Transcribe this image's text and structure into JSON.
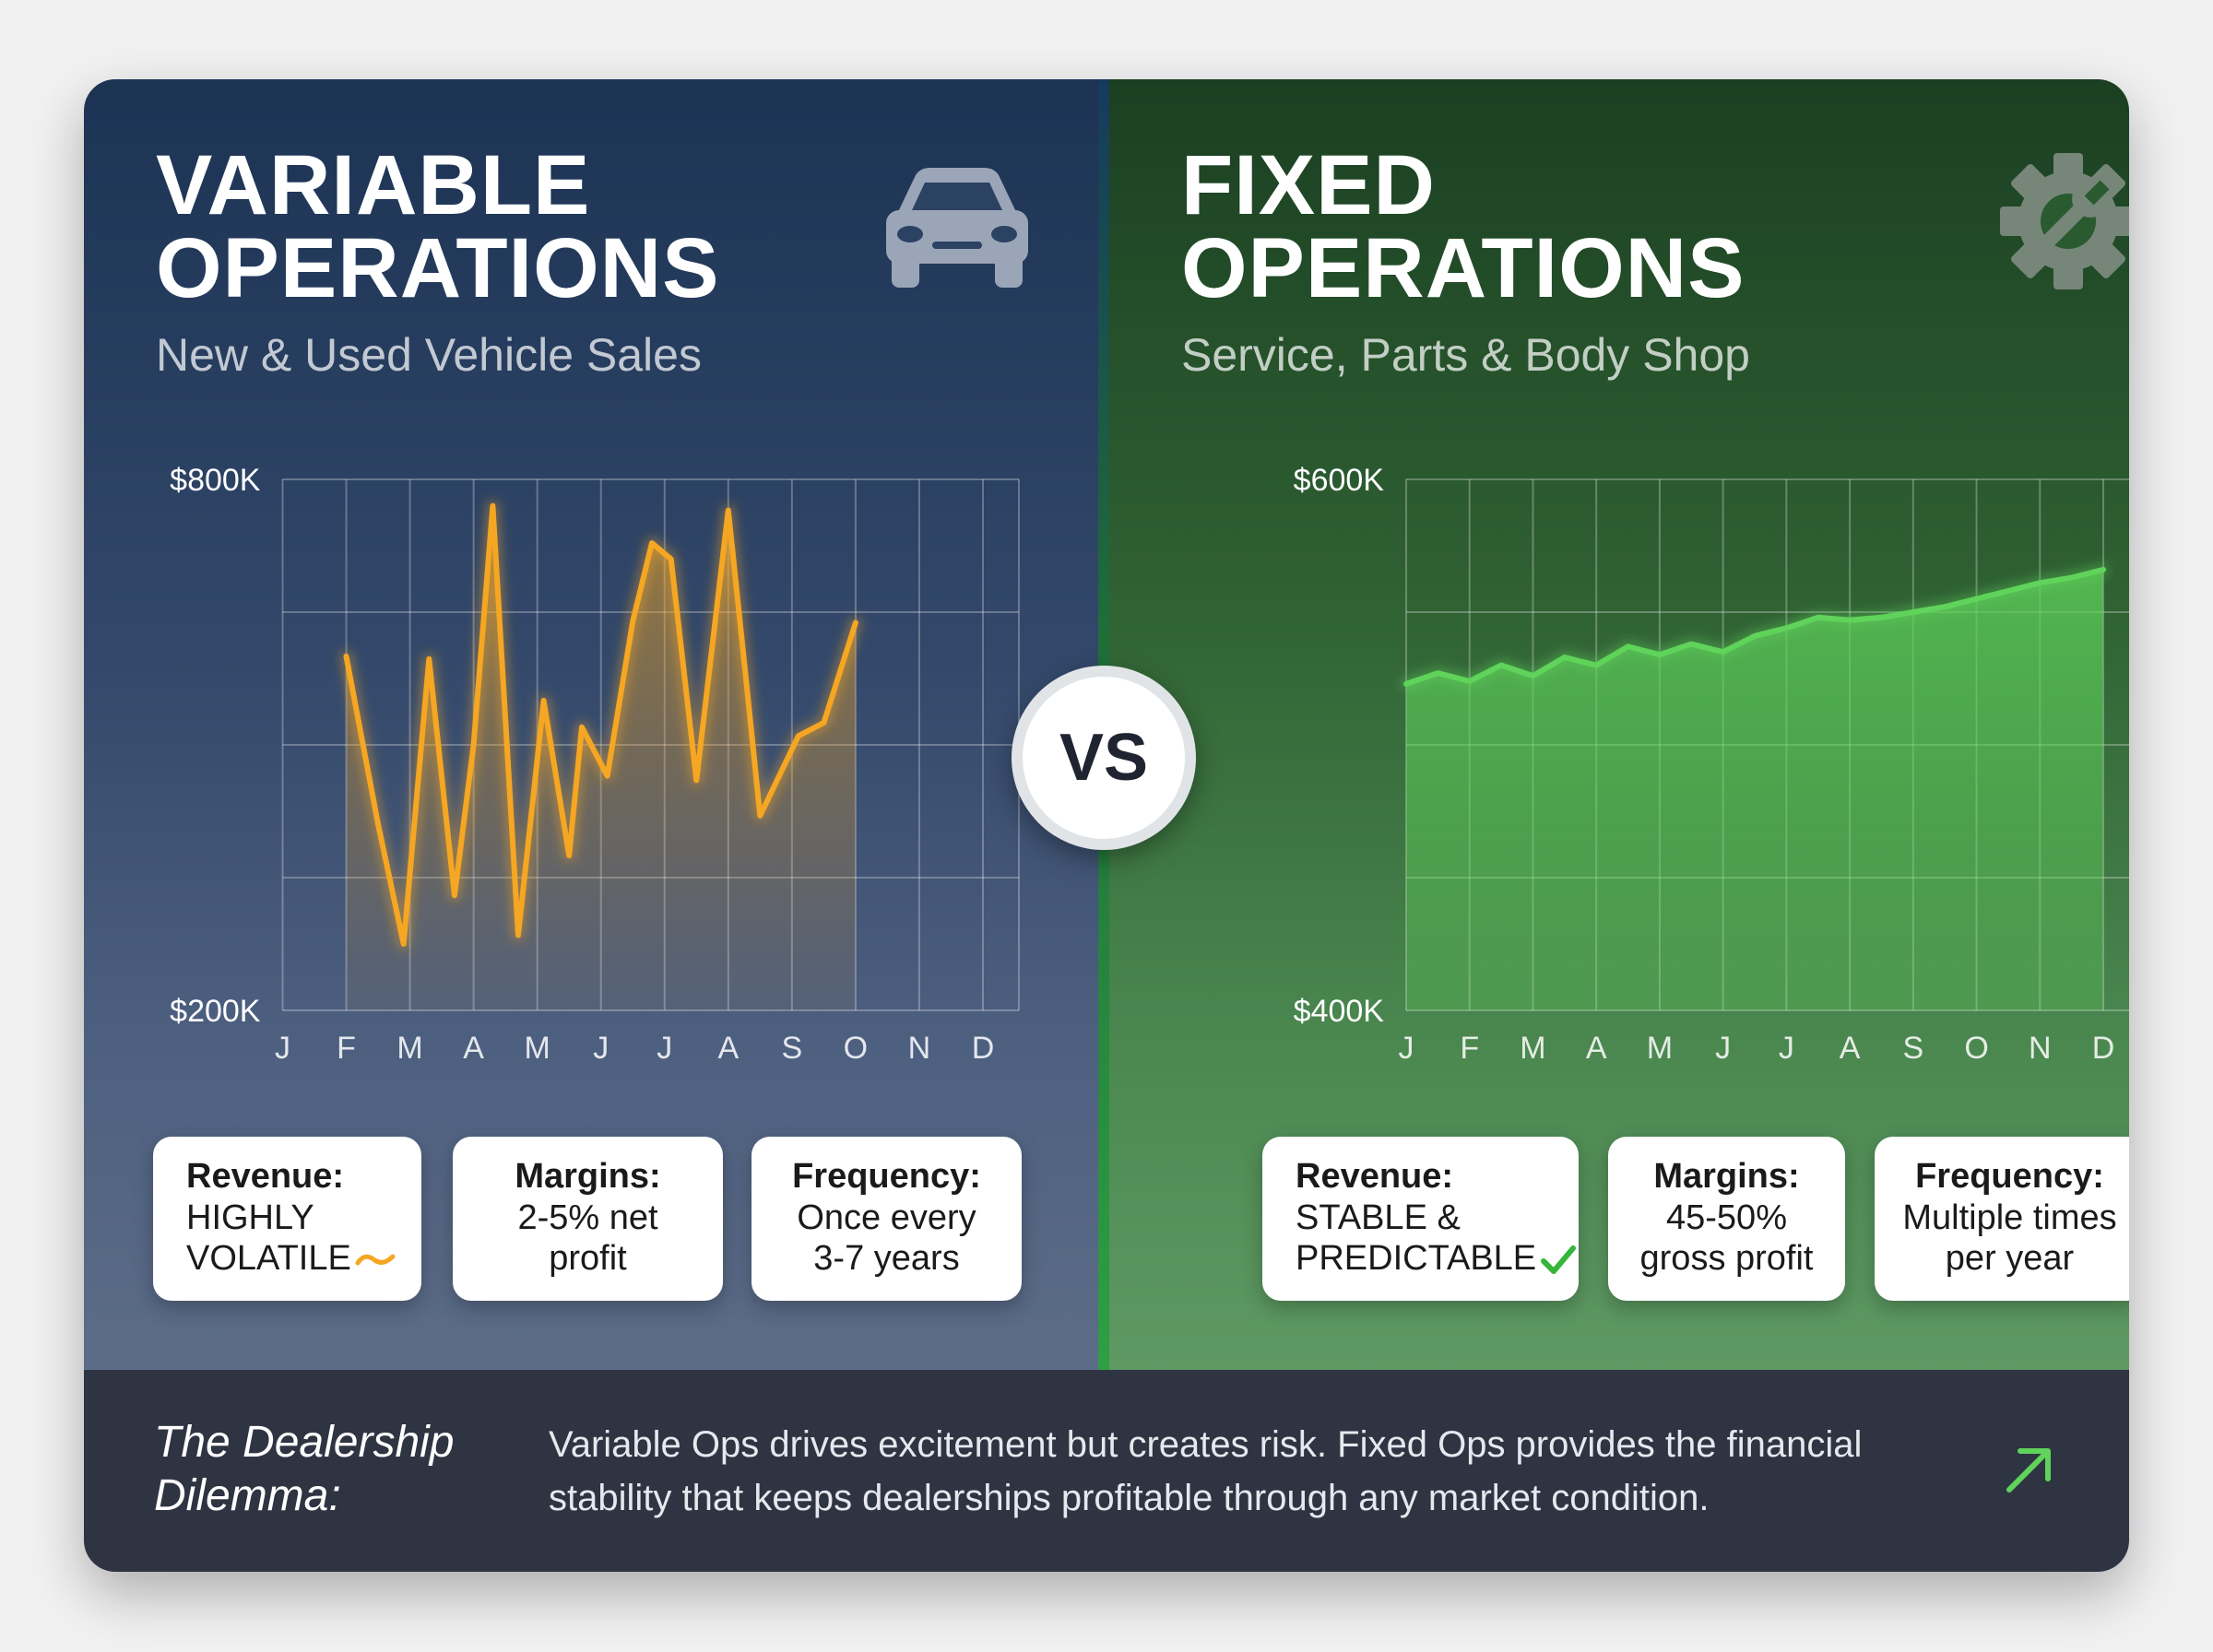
{
  "left": {
    "title_line1": "VARIABLE",
    "title_line2": "OPERATIONS",
    "subtitle": "New & Used Vehicle Sales",
    "icon": "car-icon",
    "accent": "#f5a623",
    "stats": [
      {
        "label": "Revenue:",
        "lines": [
          "HIGHLY",
          "VOLATILE"
        ],
        "mark": "tilde-icon"
      },
      {
        "label": "Margins:",
        "lines": [
          "2-5% net",
          "profit"
        ]
      },
      {
        "label": "Frequency:",
        "lines": [
          "Once every",
          "3-7 years"
        ]
      }
    ]
  },
  "right": {
    "title_line1": "FIXED",
    "title_line2": "OPERATIONS",
    "subtitle": "Service, Parts & Body Shop",
    "icon": "gear-wrench-icon",
    "accent": "#5fd35a",
    "stats": [
      {
        "label": "Revenue:",
        "lines": [
          "STABLE &",
          "PREDICTABLE"
        ],
        "mark": "check-icon"
      },
      {
        "label": "Margins:",
        "lines": [
          "45-50%",
          "gross profit"
        ]
      },
      {
        "label": "Frequency:",
        "lines": [
          "Multiple times",
          "per year"
        ]
      }
    ]
  },
  "vs_label": "VS",
  "footer": {
    "title_line1": "The Dealership",
    "title_line2": "Dilemma:",
    "text_line1": "Variable Ops drives excitement but creates risk. Fixed Ops provides the financial",
    "text_line2": "stability that keeps dealerships profitable through any market condition.",
    "icon": "arrow-up-right-icon"
  },
  "chart_data": [
    {
      "type": "line",
      "categories": [
        "J",
        "F",
        "M",
        "A",
        "M",
        "J",
        "J",
        "A",
        "S",
        "O",
        "N",
        "D"
      ],
      "ylim": [
        200,
        800
      ],
      "y_tick_labels": [
        "$800K",
        "$200K"
      ],
      "series": [
        {
          "values": [
            [
              1,
              600
            ],
            [
              1.5,
              410
            ],
            [
              1.9,
              275
            ],
            [
              2.3,
              597
            ],
            [
              2.7,
              330
            ],
            [
              3,
              500
            ],
            [
              3.3,
              770
            ],
            [
              3.7,
              285
            ],
            [
              4.1,
              550
            ],
            [
              4.5,
              375
            ],
            [
              4.7,
              520
            ],
            [
              5.1,
              465
            ],
            [
              5.5,
              640
            ],
            [
              5.8,
              728
            ],
            [
              6.1,
              710
            ],
            [
              6.5,
              460
            ],
            [
              7,
              765
            ],
            [
              7.3,
              560
            ],
            [
              7.5,
              420
            ],
            [
              8.1,
              510
            ],
            [
              8.5,
              525
            ],
            [
              9,
              638
            ]
          ],
          "color": "#f5a623"
        }
      ],
      "area_fill": true,
      "grid": true
    },
    {
      "type": "area",
      "categories": [
        "J",
        "F",
        "M",
        "A",
        "M",
        "J",
        "J",
        "A",
        "S",
        "O",
        "N",
        "D"
      ],
      "ylim": [
        400,
        600
      ],
      "y_tick_labels": [
        "$600K",
        "$400K"
      ],
      "series": [
        {
          "values": [
            [
              0,
              523
            ],
            [
              0.5,
              527
            ],
            [
              1,
              524
            ],
            [
              1.5,
              530
            ],
            [
              2,
              526
            ],
            [
              2.5,
              533
            ],
            [
              3,
              530
            ],
            [
              3.5,
              537
            ],
            [
              4,
              534
            ],
            [
              4.5,
              538
            ],
            [
              5,
              535
            ],
            [
              5.5,
              541
            ],
            [
              6,
              544
            ],
            [
              6.5,
              548
            ],
            [
              7,
              547
            ],
            [
              7.5,
              548
            ],
            [
              8,
              550
            ],
            [
              8.5,
              552
            ],
            [
              9,
              555
            ],
            [
              9.5,
              558
            ],
            [
              10,
              561
            ],
            [
              10.5,
              563
            ],
            [
              11,
              566
            ]
          ],
          "color": "#5fd35a"
        }
      ],
      "area_fill": true,
      "grid": true
    }
  ]
}
